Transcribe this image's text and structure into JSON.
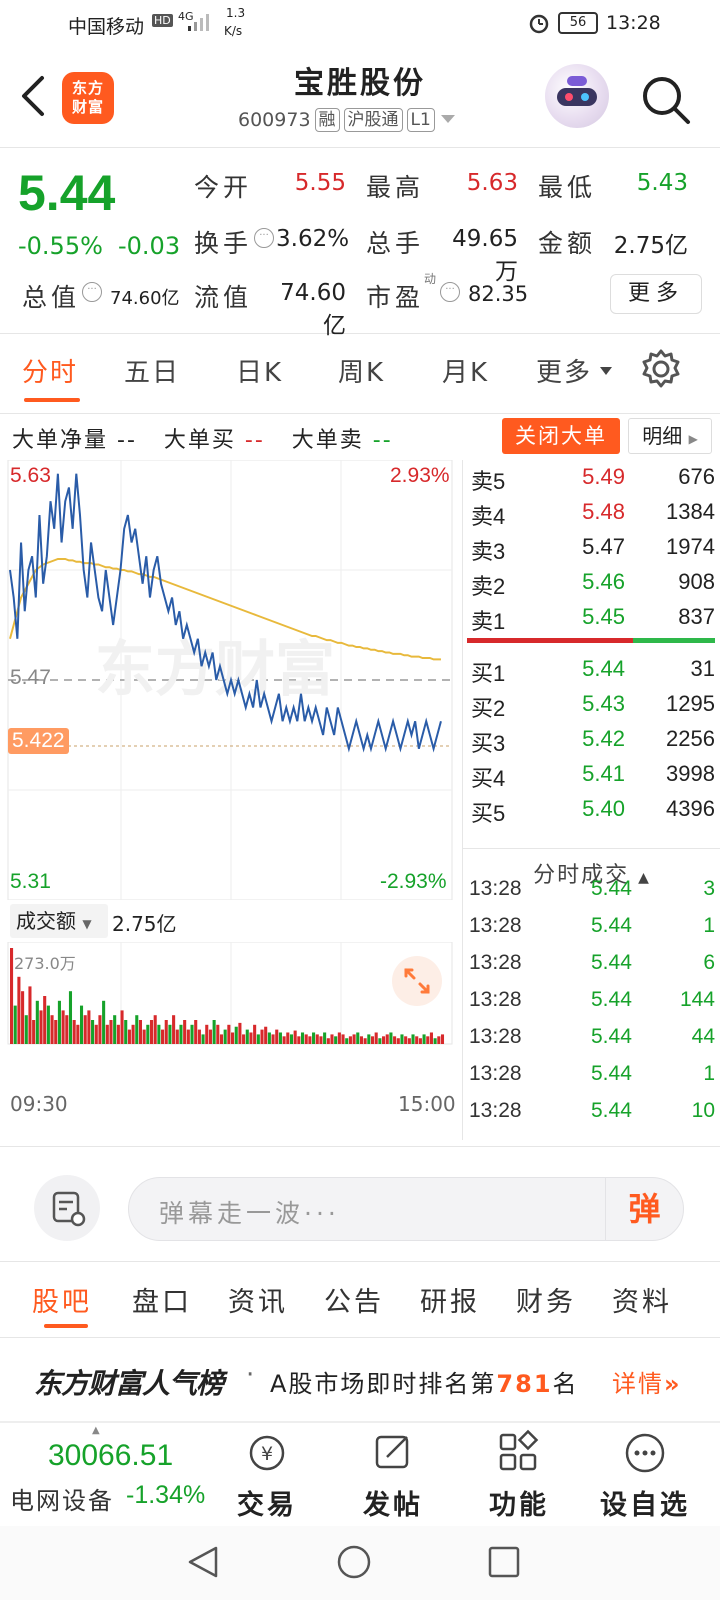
{
  "status_bar": {
    "carrier": "中国移动",
    "hd": "HD",
    "net": "4G",
    "speed": "1.3",
    "speed_unit": "K/s",
    "battery": "56",
    "time": "13:28"
  },
  "header": {
    "title": "宝胜股份",
    "code": "600973",
    "tags": [
      "融",
      "沪股通",
      "L1"
    ],
    "logo_text_1": "东方",
    "logo_text_2": "财富"
  },
  "quote": {
    "price": "5.44",
    "change_pct": "-0.55%",
    "change_abs": "-0.03",
    "open_label": "今开",
    "open": "5.55",
    "high_label": "最高",
    "high": "5.63",
    "low_label": "最低",
    "low": "5.43",
    "turnover_label": "换手",
    "turnover": "3.62%",
    "volume_label": "总手",
    "volume": "49.65万",
    "amount_label": "金额",
    "amount": "2.75亿",
    "mktcap_label": "总值",
    "mktcap": "74.60亿",
    "float_label": "流值",
    "float_cap": "74.60亿",
    "pe_label": "市盈",
    "pe_sup": "动",
    "pe": "82.35",
    "more": "更多"
  },
  "period_tabs": [
    "分时",
    "五日",
    "日K",
    "周K",
    "月K",
    "更多"
  ],
  "big_order": {
    "net": "大单净量",
    "net_val": "--",
    "buy": "大单买",
    "buy_val": "--",
    "sell": "大单卖",
    "sell_val": "--",
    "close_btn": "关闭大单",
    "detail_btn": "明细"
  },
  "chart_data": {
    "type": "line",
    "watermark": "东方财富",
    "y_top": "5.63",
    "y_mid": "5.47",
    "y_bottom": "5.31",
    "pct_top": "2.93%",
    "pct_bottom": "-2.93%",
    "current_marker": "5.422",
    "x_start": "09:30",
    "x_end": "15:00",
    "ylim": [
      5.31,
      5.63
    ],
    "minutes_total": 241,
    "series": [
      {
        "values": [
          5.55,
          5.53,
          5.5,
          5.57,
          5.52,
          5.55,
          5.56,
          5.53,
          5.59,
          5.54,
          5.56,
          5.6,
          5.58,
          5.62,
          5.57,
          5.6,
          5.61,
          5.58,
          5.62,
          5.59,
          5.55,
          5.53,
          5.57,
          5.55,
          5.53,
          5.52,
          5.55,
          5.53,
          5.51,
          5.53,
          5.55,
          5.58,
          5.59,
          5.57,
          5.58,
          5.56,
          5.54,
          5.56,
          5.53,
          5.55,
          5.56,
          5.54,
          5.53,
          5.52,
          5.53,
          5.51,
          5.52,
          5.5,
          5.51,
          5.5,
          5.49,
          5.5,
          5.48,
          5.49,
          5.48,
          5.49,
          5.47,
          5.48,
          5.47,
          5.46,
          5.47,
          5.46,
          5.47,
          5.46,
          5.45,
          5.46,
          5.45,
          5.47,
          5.45,
          5.46,
          5.45,
          5.44,
          5.45,
          5.46,
          5.44,
          5.45,
          5.44,
          5.45,
          5.44,
          5.46,
          5.44,
          5.45,
          5.44,
          5.45,
          5.44,
          5.43,
          5.45,
          5.44,
          5.43,
          5.45,
          5.44,
          5.43,
          5.42,
          5.43,
          5.44,
          5.43,
          5.42,
          5.43,
          5.42,
          5.43,
          5.44,
          5.43,
          5.42,
          5.43,
          5.44,
          5.43,
          5.42,
          5.43,
          5.44,
          5.43,
          5.44,
          5.42,
          5.43,
          5.44,
          5.43,
          5.42,
          5.43,
          5.44
        ],
        "color": "#2a5ca8"
      },
      {
        "values": [
          5.5,
          5.51,
          5.52,
          5.53,
          5.535,
          5.54,
          5.545,
          5.55,
          5.552,
          5.554,
          5.555,
          5.556,
          5.557,
          5.558,
          5.558,
          5.558,
          5.557,
          5.557,
          5.556,
          5.556,
          5.555,
          5.555,
          5.555,
          5.554,
          5.554,
          5.553,
          5.552,
          5.552,
          5.551,
          5.551,
          5.55,
          5.55,
          5.549,
          5.549,
          5.548,
          5.547,
          5.547,
          5.546,
          5.545,
          5.545,
          5.544,
          5.543,
          5.542,
          5.541,
          5.54,
          5.539,
          5.538,
          5.537,
          5.536,
          5.535,
          5.534,
          5.533,
          5.532,
          5.531,
          5.53,
          5.529,
          5.528,
          5.527,
          5.526,
          5.525,
          5.524,
          5.523,
          5.522,
          5.521,
          5.52,
          5.519,
          5.518,
          5.517,
          5.516,
          5.515,
          5.514,
          5.513,
          5.512,
          5.511,
          5.51,
          5.509,
          5.508,
          5.507,
          5.506,
          5.505,
          5.504,
          5.503,
          5.502,
          5.502,
          5.501,
          5.5,
          5.499,
          5.499,
          5.498,
          5.497,
          5.497,
          5.496,
          5.495,
          5.495,
          5.494,
          5.494,
          5.493,
          5.493,
          5.492,
          5.492,
          5.491,
          5.491,
          5.49,
          5.49,
          5.489,
          5.489,
          5.489,
          5.488,
          5.488,
          5.487,
          5.487,
          5.487,
          5.486,
          5.486,
          5.486,
          5.485,
          5.485,
          5.485
        ],
        "color": "#e8b93c"
      }
    ],
    "volume_label": "成交额",
    "volume_total": "2.75亿",
    "volume_max_label": "273.0万",
    "volume_bars": [
      100,
      40,
      70,
      55,
      30,
      60,
      25,
      45,
      35,
      50,
      40,
      30,
      25,
      45,
      35,
      30,
      55,
      25,
      20,
      40,
      30,
      35,
      25,
      20,
      30,
      45,
      20,
      25,
      30,
      20,
      35,
      25,
      15,
      20,
      30,
      25,
      15,
      20,
      25,
      30,
      20,
      15,
      25,
      20,
      30,
      15,
      20,
      25,
      15,
      20,
      25,
      15,
      10,
      20,
      15,
      25,
      20,
      10,
      15,
      20,
      12,
      18,
      22,
      10,
      15,
      12,
      20,
      10,
      15,
      18,
      12,
      10,
      15,
      12,
      8,
      12,
      10,
      14,
      8,
      12,
      10,
      8,
      12,
      10,
      8,
      12,
      6,
      10,
      8,
      12,
      10,
      6,
      8,
      10,
      12,
      8,
      6,
      10,
      8,
      12,
      6,
      8,
      10,
      12,
      8,
      6,
      10,
      8,
      6,
      10,
      8,
      6,
      10,
      8,
      12,
      6,
      8,
      10
    ],
    "volume_bar_colors": [
      "red",
      "green"
    ]
  },
  "order_book": {
    "asks": [
      {
        "label": "卖5",
        "price": "5.49",
        "vol": "676",
        "color": "red"
      },
      {
        "label": "卖4",
        "price": "5.48",
        "vol": "1384",
        "color": "red"
      },
      {
        "label": "卖3",
        "price": "5.47",
        "vol": "1974",
        "color": "dark"
      },
      {
        "label": "卖2",
        "price": "5.46",
        "vol": "908",
        "color": "green"
      },
      {
        "label": "卖1",
        "price": "5.45",
        "vol": "837",
        "color": "green"
      }
    ],
    "bids": [
      {
        "label": "买1",
        "price": "5.44",
        "vol": "31",
        "color": "green"
      },
      {
        "label": "买2",
        "price": "5.43",
        "vol": "1295",
        "color": "green"
      },
      {
        "label": "买3",
        "price": "5.42",
        "vol": "2256",
        "color": "green"
      },
      {
        "label": "买4",
        "price": "5.41",
        "vol": "3998",
        "color": "green"
      },
      {
        "label": "买5",
        "price": "5.40",
        "vol": "4396",
        "color": "green"
      }
    ],
    "ticks_title": "分时成交",
    "ticks": [
      {
        "t": "13:28",
        "p": "5.44",
        "v": "3"
      },
      {
        "t": "13:28",
        "p": "5.44",
        "v": "1"
      },
      {
        "t": "13:28",
        "p": "5.44",
        "v": "6"
      },
      {
        "t": "13:28",
        "p": "5.44",
        "v": "144"
      },
      {
        "t": "13:28",
        "p": "5.44",
        "v": "44"
      },
      {
        "t": "13:28",
        "p": "5.44",
        "v": "1"
      },
      {
        "t": "13:28",
        "p": "5.44",
        "v": "10"
      }
    ]
  },
  "comment": {
    "placeholder": "弹幕走一波···",
    "send": "弹"
  },
  "section_tabs": [
    "股吧",
    "盘口",
    "资讯",
    "公告",
    "研报",
    "财务",
    "资料"
  ],
  "rank": {
    "brand": "东方财富人气榜",
    "dot": "·",
    "text_a": "A股市场即时排名第",
    "rank": "781",
    "text_b": "名",
    "detail": "详情"
  },
  "bottom_nav": {
    "index_value": "30066.51",
    "index_name": "电网设备",
    "index_change": "-1.34%",
    "items": [
      "交易",
      "发帖",
      "功能",
      "设自选"
    ]
  },
  "colors": {
    "accent": "#ff5a1f",
    "up": "#d7292b",
    "down": "#16a22a",
    "price_line": "#2a5ca8",
    "avg_line": "#e8b93c"
  }
}
